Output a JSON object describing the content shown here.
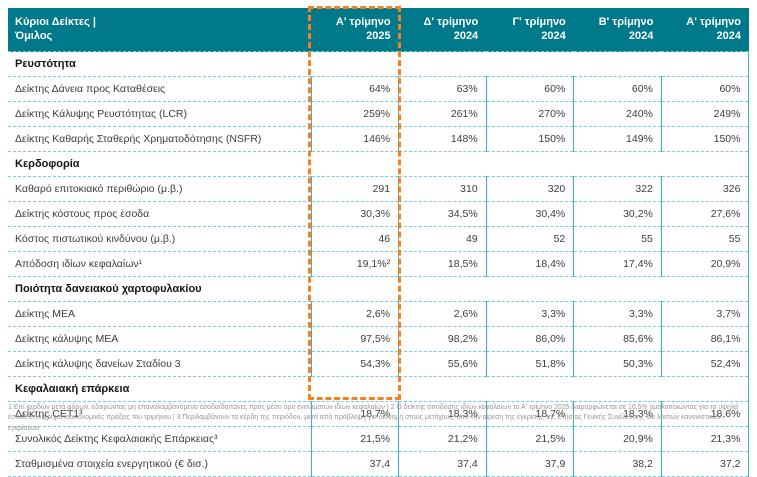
{
  "table": {
    "header": {
      "title_line1": "Κύριοι Δείκτες |",
      "title_line2": "Όμιλος",
      "columns": [
        {
          "line1": "Α' τρίμηνο",
          "line2": "2025"
        },
        {
          "line1": "Δ' τρίμηνο",
          "line2": "2024"
        },
        {
          "line1": "Γ' τρίμηνο",
          "line2": "2024"
        },
        {
          "line1": "Β' τρίμηνο",
          "line2": "2024"
        },
        {
          "line1": "Α' τρίμηνο",
          "line2": "2024"
        }
      ]
    },
    "sections": [
      {
        "title": "Ρευστότητα",
        "rows": [
          {
            "label": "Δείκτης Δάνεια προς Καταθέσεις",
            "values": [
              "64%",
              "63%",
              "60%",
              "60%",
              "60%"
            ]
          },
          {
            "label": "Δείκτης Κάλυψης Ρευστότητας (LCR)",
            "values": [
              "259%",
              "261%",
              "270%",
              "240%",
              "249%"
            ]
          },
          {
            "label": "Δείκτης Καθαρής Σταθερής Χρηματοδότησης (NSFR)",
            "values": [
              "146%",
              "148%",
              "150%",
              "149%",
              "150%"
            ]
          }
        ]
      },
      {
        "title": "Κερδοφορία",
        "rows": [
          {
            "label": "Καθαρό επιτοκιακό περιθώριο (μ.β.)",
            "values": [
              "291",
              "310",
              "320",
              "322",
              "326"
            ]
          },
          {
            "label": "Δείκτης κόστους προς έσοδα",
            "values": [
              "30,3%",
              "34,5%",
              "30,4%",
              "30,2%",
              "27,6%"
            ]
          },
          {
            "label": "Κόστος πιστωτικού κινδύνου (μ.β.)",
            "values": [
              "46",
              "49",
              "52",
              "55",
              "55"
            ]
          },
          {
            "label": "Απόδοση ιδίων κεφαλαίων¹",
            "values": [
              "19,1%²",
              "18,5%",
              "18,4%",
              "17,4%",
              "20,9%"
            ]
          }
        ]
      },
      {
        "title": "Ποιότητα δανειακού χαρτοφυλακίου",
        "rows": [
          {
            "label": "Δείκτης ΜΕΑ",
            "values": [
              "2,6%",
              "2,6%",
              "3,3%",
              "3,3%",
              "3,7%"
            ]
          },
          {
            "label": "Δείκτης κάλυψης ΜΕΑ",
            "values": [
              "97,5%",
              "98,2%",
              "86,0%",
              "85,6%",
              "86,1%"
            ]
          },
          {
            "label": "Δείκτης κάλυψης δανείων Σταδίου 3",
            "values": [
              "54,3%",
              "55,6%",
              "51,8%",
              "50,3%",
              "52,4%"
            ]
          }
        ]
      },
      {
        "title": "Κεφαλαιακή επάρκεια",
        "rows": [
          {
            "label": "Δείκτης CET1³",
            "values": [
              "18,7%",
              "18,3%",
              "18,7%",
              "18,3%",
              "18,6%"
            ]
          },
          {
            "label": "Συνολικός Δείκτης Κεφαλαιακής Επάρκειας³",
            "values": [
              "21,5%",
              "21,2%",
              "21,5%",
              "20,9%",
              "21,3%"
            ]
          },
          {
            "label": "Σταθμισμένα στοιχεία ενεργητικού (€ δισ.)",
            "values": [
              "37,4",
              "37,4",
              "37,9",
              "38,2",
              "37,2"
            ]
          }
        ]
      }
    ],
    "colors": {
      "header_bg": "#00798A",
      "grid_solid": "#3EB1C8",
      "grid_dashed": "#76CCDC",
      "highlight": "#F58220"
    }
  },
  "footnote": "1 Επί κερδών μετά φόρων, εξαιρώντας μη επαναλαμβανόμενα έσοδα/δαπάνες προς μέσο όρο ενσώματων ιδίων κεφαλαίων | 2 Ο δείκτης απόδοσης ιδίων κεφαλαίων το Α' τρίμηνο 2025 διαμορφώνεται σε 16,5% ομαλοποιώντας για τα υψηλά έσοδα από χρηματοοικονομικές πράξεις του τριμήνου | 3 Περιλαμβάνουν τα κέρδη της περιόδου, μετά από πρόβλεψη για διανομή στους μετόχους, υπό την αίρεση της έγκρισης της Ετήσιας Γενικής Συνέλευσης και λοιπών κανονιστικών εγκρίσεων"
}
